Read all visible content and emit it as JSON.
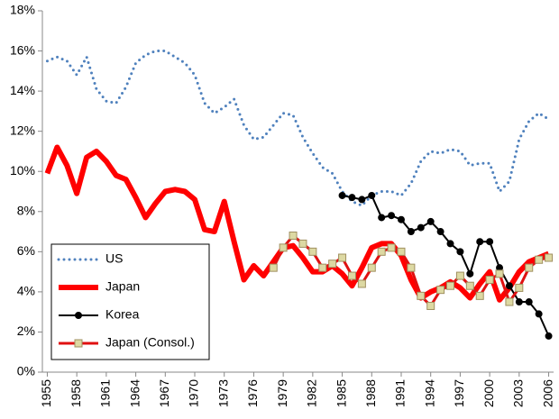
{
  "chart_data": {
    "type": "line",
    "x": [
      1955,
      1956,
      1957,
      1958,
      1959,
      1960,
      1961,
      1962,
      1963,
      1964,
      1965,
      1966,
      1967,
      1968,
      1969,
      1970,
      1971,
      1972,
      1973,
      1974,
      1975,
      1976,
      1977,
      1978,
      1979,
      1980,
      1981,
      1982,
      1983,
      1984,
      1985,
      1986,
      1987,
      1988,
      1989,
      1990,
      1991,
      1992,
      1993,
      1994,
      1995,
      1996,
      1997,
      1998,
      1999,
      2000,
      2001,
      2002,
      2003,
      2004,
      2005,
      2006
    ],
    "xlim": [
      1954.5,
      2006.5
    ],
    "xticks": [
      1955,
      1958,
      1961,
      1964,
      1967,
      1970,
      1973,
      1976,
      1979,
      1982,
      1985,
      1988,
      1991,
      1994,
      1997,
      2000,
      2003,
      2006
    ],
    "ylim": [
      0,
      18
    ],
    "yticks": [
      {
        "value": 0,
        "label": "0%"
      },
      {
        "value": 2,
        "label": "2%"
      },
      {
        "value": 4,
        "label": "4%"
      },
      {
        "value": 6,
        "label": "6%"
      },
      {
        "value": 8,
        "label": "8%"
      },
      {
        "value": 10,
        "label": "10%"
      },
      {
        "value": 12,
        "label": "12%"
      },
      {
        "value": 14,
        "label": "14%"
      },
      {
        "value": 16,
        "label": "16%"
      },
      {
        "value": 18,
        "label": "18%"
      }
    ],
    "legend": "lower left",
    "series": [
      {
        "name": "US",
        "color": "#4f81bd",
        "dash": "dotted",
        "line_width": 3,
        "values": [
          15.5,
          15.7,
          15.5,
          14.8,
          15.7,
          14.1,
          13.5,
          13.4,
          14.2,
          15.4,
          15.8,
          16.0,
          16.0,
          15.7,
          15.4,
          14.8,
          13.4,
          12.9,
          13.2,
          13.6,
          12.3,
          11.6,
          11.7,
          12.3,
          12.9,
          12.8,
          11.7,
          10.9,
          10.2,
          9.9,
          9.0,
          8.5,
          8.3,
          8.8,
          9.0,
          9.0,
          8.8,
          9.4,
          10.5,
          11.0,
          10.9,
          11.1,
          11.0,
          10.3,
          10.4,
          10.4,
          9.0,
          9.5,
          11.6,
          12.5,
          12.9,
          12.6
        ]
      },
      {
        "name": "Japan",
        "color": "#ff0000",
        "line_width": 6,
        "values": [
          9.9,
          11.2,
          10.3,
          8.9,
          10.7,
          11.0,
          10.5,
          9.8,
          9.6,
          8.7,
          7.7,
          8.4,
          9.0,
          9.1,
          9.0,
          8.6,
          7.1,
          7.0,
          8.5,
          6.5,
          4.6,
          5.3,
          4.8,
          5.5,
          6.2,
          6.3,
          5.7,
          5.0,
          5.0,
          5.3,
          4.9,
          4.3,
          5.2,
          6.2,
          6.4,
          6.4,
          5.8,
          4.6,
          3.7,
          4.0,
          4.2,
          4.5,
          4.2,
          3.7,
          4.4,
          5.0,
          3.6,
          4.2,
          5.0,
          5.5,
          5.7,
          5.9
        ]
      },
      {
        "name": "Korea",
        "color": "#000000",
        "line_width": 2,
        "marker": "circle",
        "marker_color": "#000000",
        "values": [
          null,
          null,
          null,
          null,
          null,
          null,
          null,
          null,
          null,
          null,
          null,
          null,
          null,
          null,
          null,
          null,
          null,
          null,
          null,
          null,
          null,
          null,
          null,
          null,
          null,
          null,
          null,
          null,
          null,
          null,
          8.8,
          8.7,
          8.6,
          8.8,
          7.7,
          7.8,
          7.6,
          7.0,
          7.2,
          7.5,
          7.0,
          6.4,
          6.0,
          4.9,
          6.5,
          6.5,
          5.2,
          4.3,
          3.5,
          3.5,
          2.9,
          1.8
        ]
      },
      {
        "name": "Japan (Consol.)",
        "color": "#e01010",
        "line_width": 3,
        "marker": "square",
        "marker_color": "#ddd9a3",
        "values": [
          null,
          null,
          null,
          null,
          null,
          null,
          null,
          null,
          null,
          null,
          null,
          null,
          null,
          null,
          null,
          null,
          null,
          null,
          null,
          null,
          null,
          null,
          null,
          5.2,
          6.2,
          6.8,
          6.4,
          6.0,
          5.2,
          5.4,
          5.7,
          4.8,
          4.4,
          5.2,
          6.0,
          6.2,
          6.0,
          5.2,
          3.8,
          3.3,
          4.1,
          4.3,
          4.8,
          4.3,
          3.8,
          4.6,
          4.9,
          3.5,
          4.2,
          5.2,
          5.6,
          5.7
        ]
      }
    ]
  }
}
